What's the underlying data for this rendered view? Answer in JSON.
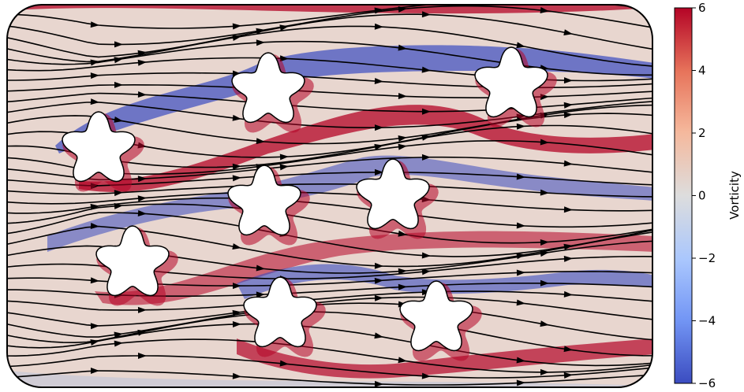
{
  "chart_data": {
    "type": "heatmap",
    "title": "",
    "field": "vorticity",
    "overlay": "streamlines",
    "colormap": "coolwarm",
    "colorbar": {
      "label": "Vorticity",
      "min": -6,
      "max": 6,
      "ticks": [
        6,
        4,
        2,
        0,
        -2,
        -4,
        -6
      ],
      "tick_labels": [
        "6",
        "4",
        "2",
        "0",
        "−2",
        "−4",
        "−6"
      ],
      "placement": "right"
    },
    "flow_direction": "left-to-right",
    "obstacles": {
      "shape": "star",
      "count": 8
    },
    "colors": {
      "high": "#b40426",
      "mid": "#dddddd",
      "low": "#3b4cc0",
      "streamline": "#000000"
    }
  }
}
